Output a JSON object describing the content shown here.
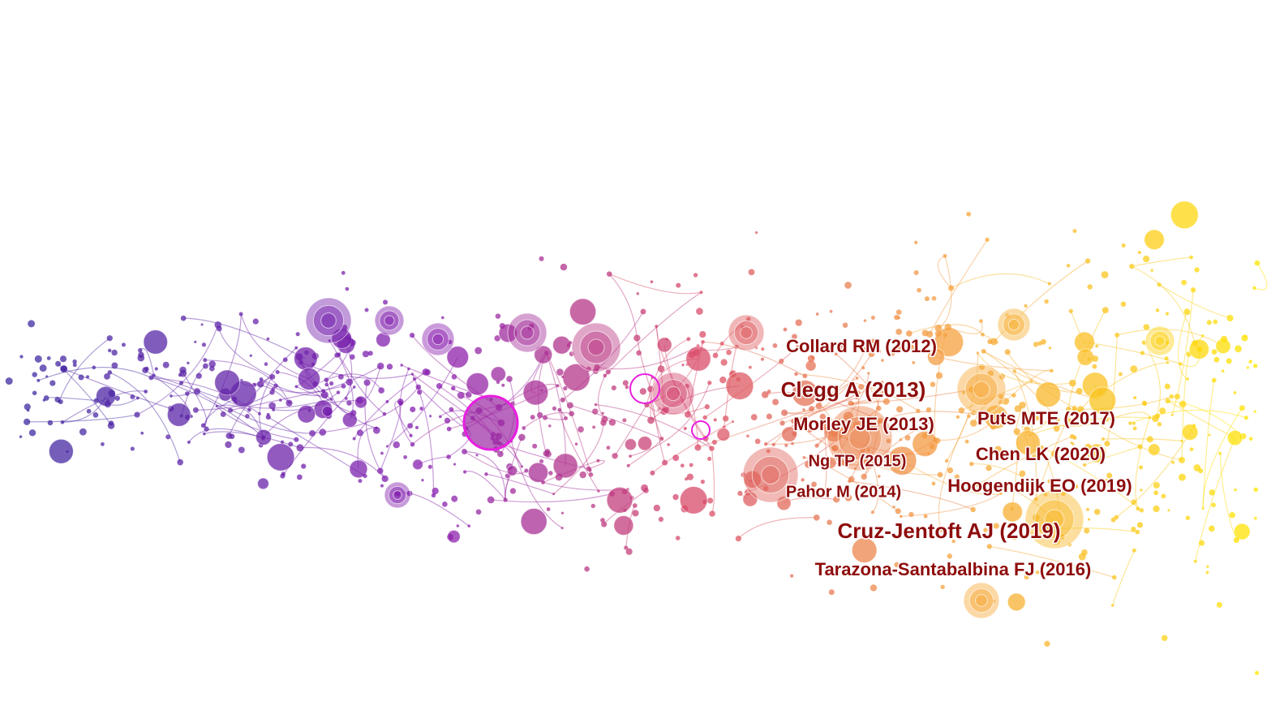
{
  "nodes": [
    {
      "label": "Collard RM (2012)"
    },
    {
      "label": "Clegg A (2013)"
    },
    {
      "label": "Morley JE (2013)"
    },
    {
      "label": "Puts MTE (2017)"
    },
    {
      "label": "Chen LK (2020)"
    },
    {
      "label": "Ng TP (2015)"
    },
    {
      "label": "Pahor M (2014)"
    },
    {
      "label": "Hoogendijk EO (2019)"
    },
    {
      "label": "Cruz-Jentoft AJ (2019)"
    },
    {
      "label": "Tarazona-Santabalbina FJ (2016)"
    }
  ]
}
